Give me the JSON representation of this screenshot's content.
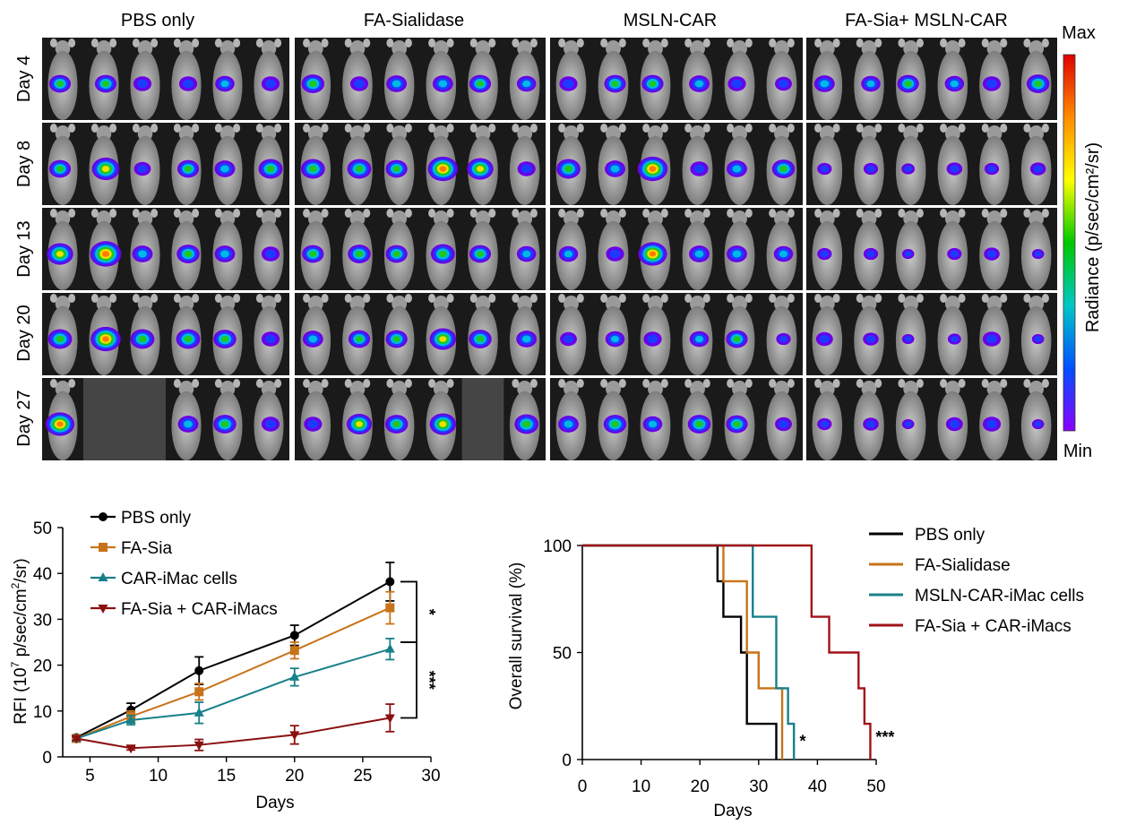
{
  "imaging": {
    "groups": [
      "PBS only",
      "FA-Sialidase",
      "MSLN-CAR",
      "FA-Sia+ MSLN-CAR"
    ],
    "days": [
      "Day 4",
      "Day 8",
      "Day 13",
      "Day 20",
      "Day 27"
    ],
    "mice_per_group": 6,
    "missing_mice": [
      {
        "group": 0,
        "day": 4,
        "mice": [
          1,
          2
        ]
      },
      {
        "group": 1,
        "day": 4,
        "mice": [
          4
        ]
      }
    ],
    "signal_levels": [
      [
        [
          0.5,
          0.5,
          0.35,
          0.35,
          0.4,
          0.35
        ],
        [
          0.5,
          0.75,
          0.3,
          0.5,
          0.45,
          0.6
        ],
        [
          0.7,
          0.9,
          0.45,
          0.55,
          0.45,
          0.35
        ],
        [
          0.6,
          0.85,
          0.6,
          0.6,
          0.55,
          0.35
        ],
        [
          0.8,
          0,
          0,
          0.45,
          0.55,
          0.35
        ]
      ],
      [
        [
          0.55,
          0.35,
          0.45,
          0.45,
          0.5,
          0.4
        ],
        [
          0.6,
          0.6,
          0.5,
          0.85,
          0.7,
          0.35
        ],
        [
          0.5,
          0.55,
          0.5,
          0.6,
          0.5,
          0.4
        ],
        [
          0.45,
          0.5,
          0.5,
          0.7,
          0.55,
          0.45
        ],
        [
          0.35,
          0.65,
          0.55,
          0.7,
          0,
          0.6
        ]
      ],
      [
        [
          0.35,
          0.5,
          0.5,
          0.45,
          0.35,
          0.3
        ],
        [
          0.6,
          0.45,
          0.85,
          0.35,
          0.45,
          0.55
        ],
        [
          0.4,
          0.35,
          0.8,
          0.45,
          0.45,
          0.4
        ],
        [
          0.3,
          0.4,
          0.35,
          0.4,
          0.5,
          0.2
        ],
        [
          0.45,
          0.55,
          0.4,
          0.55,
          0.5,
          0.3
        ]
      ],
      [
        [
          0.45,
          0.4,
          0.5,
          0.4,
          0.35,
          0.55
        ],
        [
          0.2,
          0.2,
          0.15,
          0.25,
          0.2,
          0.25
        ],
        [
          0.2,
          0.2,
          0.1,
          0.2,
          0.25,
          0.1
        ],
        [
          0.3,
          0.25,
          0.1,
          0.15,
          0.35,
          0.1
        ],
        [
          0.2,
          0.25,
          0.1,
          0.3,
          0.35,
          0.1
        ]
      ]
    ]
  },
  "colorbar": {
    "label": "Radiance (p/sec/cm²/sr)",
    "max_label": "Max",
    "min_label": "Min",
    "colors": [
      "#e00000",
      "#ff8c00",
      "#ffff00",
      "#00c800",
      "#00c8c8",
      "#0050ff",
      "#8a00ff"
    ]
  },
  "chart_data": [
    {
      "type": "line",
      "ylabel_base": "RFI (10",
      "ylabel_exp": "7",
      "ylabel_rest": " p/sec/cm",
      "ylabel_exp2": "2",
      "ylabel_end": "/sr)",
      "xlabel": "Days",
      "xlim": [
        3,
        30
      ],
      "ylim": [
        0,
        50
      ],
      "xticks": [
        5,
        10,
        15,
        20,
        25,
        30
      ],
      "yticks": [
        0,
        10,
        20,
        30,
        40,
        50
      ],
      "x": [
        4,
        8,
        13,
        20,
        27
      ],
      "legend_position": "top-left",
      "series": [
        {
          "name": "PBS only",
          "color": "#000000",
          "marker": "circle",
          "values": [
            4.2,
            10.2,
            18.8,
            26.5,
            38.2
          ],
          "errors": [
            0.6,
            1.5,
            3.0,
            2.2,
            4.2
          ]
        },
        {
          "name": "FA-Sia",
          "color": "#c8731a",
          "marker": "square",
          "values": [
            4.0,
            8.8,
            14.2,
            23.2,
            32.5
          ],
          "errors": [
            0.5,
            1.2,
            1.8,
            1.8,
            3.5
          ]
        },
        {
          "name": "CAR-iMac cells",
          "color": "#17808a",
          "marker": "triangle-up",
          "values": [
            4.0,
            8.0,
            9.6,
            17.4,
            23.5
          ],
          "errors": [
            0.5,
            1.0,
            2.3,
            1.9,
            2.3
          ]
        },
        {
          "name": "FA-Sia + CAR-iMacs",
          "color": "#8b1010",
          "marker": "triangle-down",
          "values": [
            4.0,
            1.9,
            2.6,
            4.8,
            8.5
          ],
          "errors": [
            0.4,
            0.4,
            1.2,
            2.0,
            3.0
          ]
        }
      ],
      "significance": [
        {
          "label": "*",
          "from": 38.2,
          "to": 25.0
        },
        {
          "label": "***",
          "from": 25.0,
          "to": 8.5
        }
      ]
    },
    {
      "type": "line",
      "step": true,
      "ylabel": "Overall survival (%)",
      "xlabel": "Days",
      "xlim": [
        0,
        50
      ],
      "ylim": [
        0,
        100
      ],
      "xticks": [
        0,
        10,
        20,
        30,
        40,
        50
      ],
      "yticks": [
        0,
        50,
        100
      ],
      "legend_position": "top-right",
      "series": [
        {
          "name": "PBS only",
          "color": "#000000",
          "x": [
            0,
            23,
            24,
            25,
            27,
            28,
            33
          ],
          "values": [
            100,
            83.3,
            66.7,
            66.7,
            50,
            16.7,
            0
          ]
        },
        {
          "name": "FA-Sialidase",
          "color": "#c8731a",
          "x": [
            0,
            24,
            28,
            30,
            33,
            34
          ],
          "values": [
            100,
            83.3,
            50,
            33.3,
            33.3,
            0
          ]
        },
        {
          "name": "MSLN-CAR-iMac cells",
          "color": "#17808a",
          "x": [
            0,
            29,
            33,
            34,
            35,
            36
          ],
          "values": [
            100,
            66.7,
            33.3,
            33.3,
            16.7,
            0
          ]
        },
        {
          "name": "FA-Sia + CAR-iMacs",
          "color": "#a01218",
          "x": [
            0,
            39,
            42,
            47,
            48,
            49
          ],
          "values": [
            100,
            66.7,
            50,
            33.3,
            16.7,
            0
          ]
        }
      ],
      "annotations": [
        {
          "label": "*",
          "x": 37.5,
          "y": 6
        },
        {
          "label": "***",
          "x": 51.5,
          "y": 8
        }
      ]
    }
  ]
}
